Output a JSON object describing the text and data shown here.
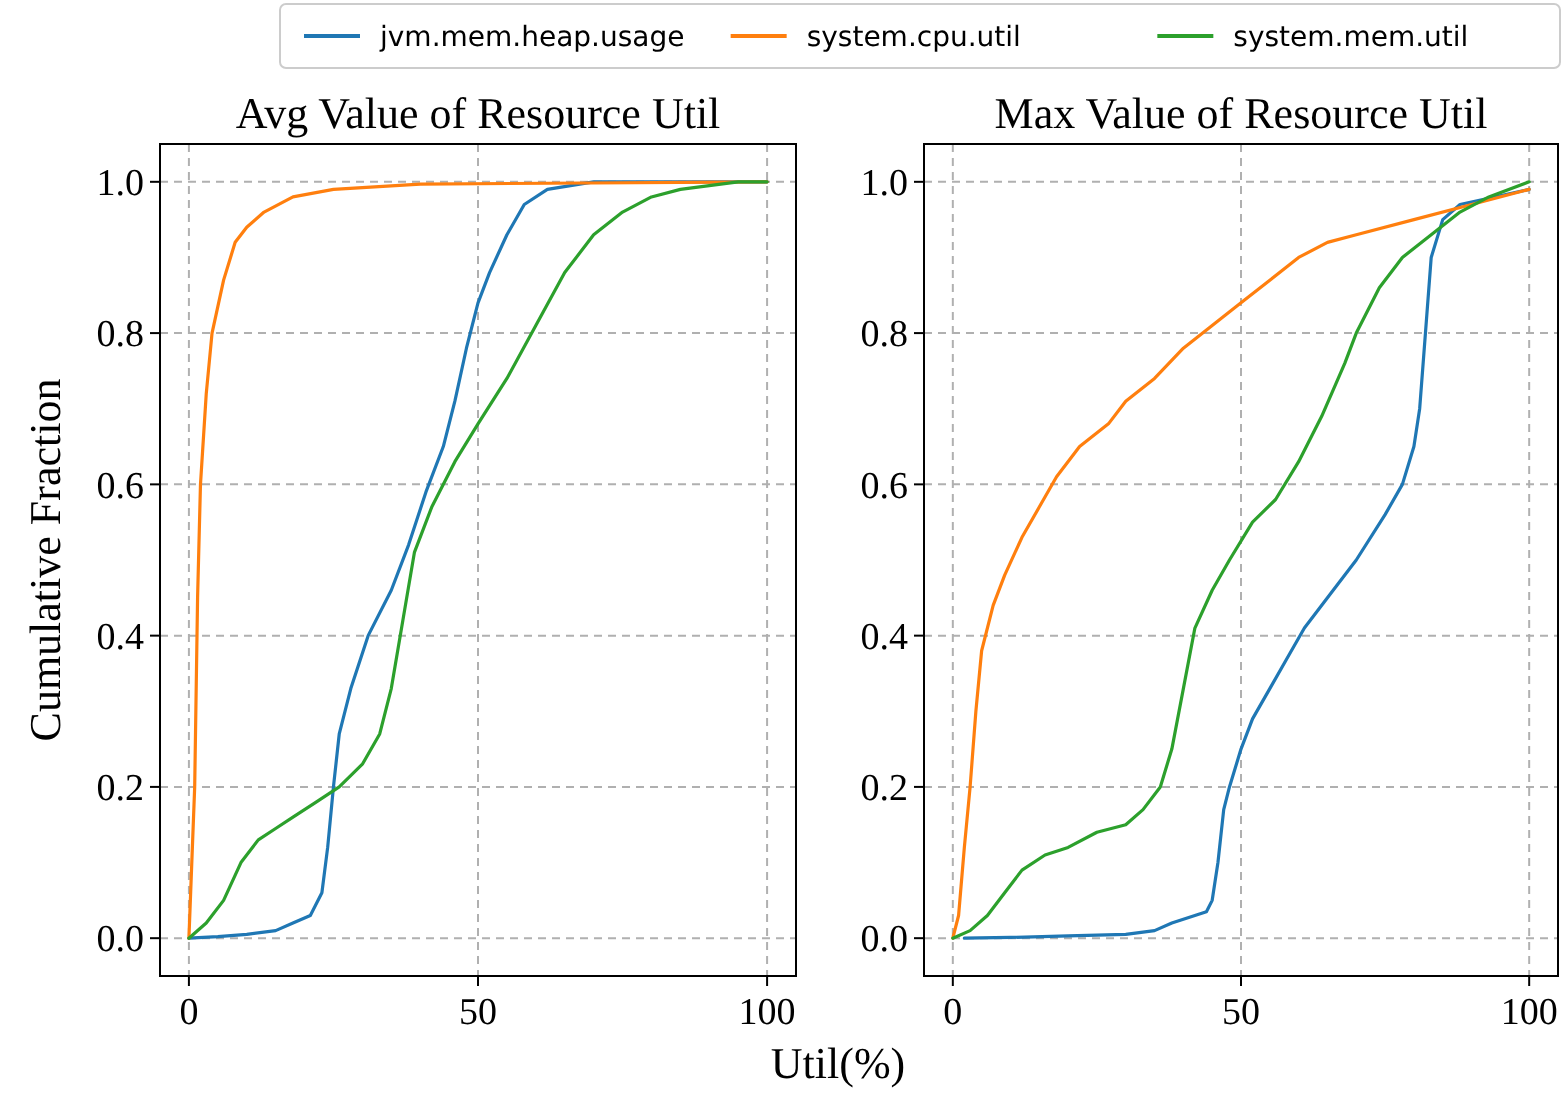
{
  "chart_data": [
    {
      "type": "line",
      "title": "Avg Value of Resource Util",
      "xlabel": "Util(%)",
      "ylabel": "Cumulative Fraction",
      "legend": "top",
      "grid": true,
      "xlim": [
        -5,
        105
      ],
      "ylim": [
        -0.05,
        1.05
      ],
      "xticks": [
        0,
        50,
        100
      ],
      "yticks": [
        {
          "value": 0,
          "label": "0.0"
        },
        {
          "value": 0.2,
          "label": "0.2"
        },
        {
          "value": 0.4,
          "label": "0.4"
        },
        {
          "value": 0.6,
          "label": "0.6"
        },
        {
          "value": 0.8,
          "label": "0.8"
        },
        {
          "value": 1,
          "label": "1.0"
        }
      ],
      "series": [
        {
          "name": "jvm.mem.heap.usage",
          "color": "#1f77b4",
          "x": [
            0,
            5,
            10,
            15,
            18,
            21,
            23,
            24,
            25,
            26,
            28,
            31,
            35,
            38,
            41,
            44,
            46,
            48,
            50,
            52,
            55,
            58,
            62,
            70,
            100
          ],
          "values": [
            0,
            0.002,
            0.005,
            0.01,
            0.02,
            0.03,
            0.06,
            0.12,
            0.2,
            0.27,
            0.33,
            0.4,
            0.46,
            0.52,
            0.59,
            0.65,
            0.71,
            0.78,
            0.84,
            0.88,
            0.93,
            0.97,
            0.99,
            1,
            1
          ]
        },
        {
          "name": "system.cpu.util",
          "color": "#ff7f0e",
          "x": [
            0,
            1,
            1.5,
            2,
            3,
            4,
            6,
            8,
            10,
            13,
            18,
            25,
            40,
            100
          ],
          "values": [
            0,
            0.2,
            0.45,
            0.6,
            0.72,
            0.8,
            0.87,
            0.92,
            0.94,
            0.96,
            0.98,
            0.99,
            0.997,
            1
          ]
        },
        {
          "name": "system.mem.util",
          "color": "#2ca02c",
          "x": [
            0,
            3,
            6,
            9,
            12,
            15,
            18,
            22,
            26,
            30,
            33,
            35,
            37,
            39,
            42,
            46,
            50,
            55,
            60,
            65,
            70,
            75,
            80,
            85,
            95,
            100
          ],
          "values": [
            0,
            0.02,
            0.05,
            0.1,
            0.13,
            0.145,
            0.16,
            0.18,
            0.2,
            0.23,
            0.27,
            0.33,
            0.42,
            0.51,
            0.57,
            0.63,
            0.68,
            0.74,
            0.81,
            0.88,
            0.93,
            0.96,
            0.98,
            0.99,
            1,
            1
          ]
        }
      ]
    },
    {
      "type": "line",
      "title": "Max Value of Resource Util",
      "grid": true,
      "xlim": [
        -5,
        105
      ],
      "ylim": [
        -0.05,
        1.05
      ],
      "xticks": [
        0,
        50,
        100
      ],
      "yticks": [
        {
          "value": 0,
          "label": "0.0"
        },
        {
          "value": 0.2,
          "label": "0.2"
        },
        {
          "value": 0.4,
          "label": "0.4"
        },
        {
          "value": 0.6,
          "label": "0.6"
        },
        {
          "value": 0.8,
          "label": "0.8"
        },
        {
          "value": 1,
          "label": "1.0"
        }
      ],
      "series": [
        {
          "color": "#1f77b4",
          "x": [
            2,
            10,
            20,
            30,
            35,
            38,
            42,
            44,
            45,
            46,
            47,
            48,
            50,
            52,
            55,
            58,
            61,
            65,
            70,
            75,
            78,
            80,
            81,
            82,
            83,
            85,
            88,
            100
          ],
          "values": [
            0,
            0.001,
            0.003,
            0.005,
            0.01,
            0.02,
            0.03,
            0.035,
            0.05,
            0.1,
            0.17,
            0.2,
            0.25,
            0.29,
            0.33,
            0.37,
            0.41,
            0.45,
            0.5,
            0.56,
            0.6,
            0.65,
            0.7,
            0.8,
            0.9,
            0.95,
            0.97,
            0.99
          ]
        },
        {
          "color": "#ff7f0e",
          "x": [
            0,
            1,
            2,
            3,
            4,
            5,
            7,
            9,
            12,
            15,
            18,
            22,
            27,
            30,
            35,
            40,
            45,
            50,
            55,
            60,
            65,
            70,
            80,
            90,
            100
          ],
          "values": [
            0,
            0.03,
            0.12,
            0.2,
            0.3,
            0.38,
            0.44,
            0.48,
            0.53,
            0.57,
            0.61,
            0.65,
            0.68,
            0.71,
            0.74,
            0.78,
            0.81,
            0.84,
            0.87,
            0.9,
            0.92,
            0.93,
            0.95,
            0.97,
            0.99
          ]
        },
        {
          "color": "#2ca02c",
          "x": [
            0,
            3,
            6,
            9,
            12,
            16,
            20,
            25,
            30,
            33,
            36,
            38,
            40,
            42,
            45,
            48,
            52,
            56,
            60,
            64,
            68,
            70,
            74,
            78,
            83,
            88,
            93,
            100
          ],
          "values": [
            0,
            0.01,
            0.03,
            0.06,
            0.09,
            0.11,
            0.12,
            0.14,
            0.15,
            0.17,
            0.2,
            0.25,
            0.33,
            0.41,
            0.46,
            0.5,
            0.55,
            0.58,
            0.63,
            0.69,
            0.76,
            0.8,
            0.86,
            0.9,
            0.93,
            0.96,
            0.98,
            1
          ]
        }
      ]
    }
  ]
}
